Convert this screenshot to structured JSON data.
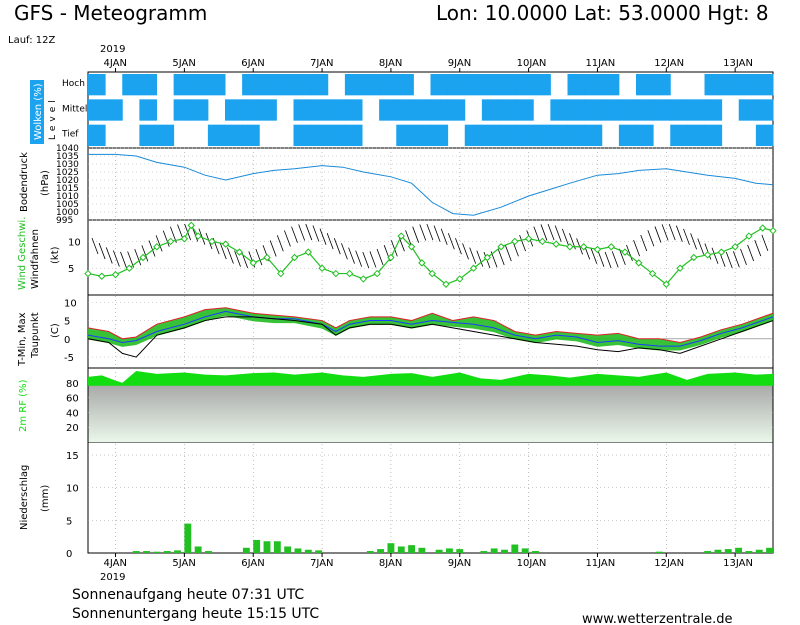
{
  "header": {
    "title": "GFS - Meteogramm",
    "coords": "Lon: 10.0000  Lat: 53.0000  Hgt: 8",
    "run": "Lauf: 12Z",
    "year": "2019"
  },
  "footer": {
    "sunrise": "Sonnenaufgang heute 07:31 UTC",
    "sunset": "Sonnenuntergang heute 15:15 UTC",
    "website": "www.wetterzentrale.de"
  },
  "colors": {
    "cloud": "#1ba3f0",
    "pressure": "#1a8ad8",
    "wind": "#22c022",
    "dew_fill": "#22bb22",
    "tmin": "#1a3cff",
    "tmax": "#e0202a",
    "rh_fill": "#11dd11",
    "precip": "#22c022"
  },
  "chart_data": [
    {
      "type": "heatmap",
      "name": "clouds",
      "ylabel": "Wolken (%)",
      "level_label": "Level",
      "levels": [
        "Hoch",
        "Mittel",
        "Tief"
      ],
      "days": [
        "4JAN",
        "5JAN",
        "6JAN",
        "7JAN",
        "8JAN",
        "9JAN",
        "10JAN",
        "11JAN",
        "12JAN",
        "13JAN"
      ],
      "x_start": 3.6,
      "x_end": 13.55,
      "cells": {
        "Hoch": [
          1,
          0,
          1,
          1,
          0,
          1,
          1,
          1,
          0,
          1,
          1,
          1,
          1,
          1,
          0,
          1,
          1,
          1,
          1,
          0,
          1,
          1,
          1,
          1,
          1,
          1,
          1,
          0,
          1,
          1,
          1,
          0,
          1,
          1,
          0,
          0,
          1,
          1,
          1,
          1
        ],
        "Mittel": [
          1,
          1,
          0,
          1,
          0,
          1,
          1,
          0,
          1,
          1,
          1,
          0,
          1,
          1,
          1,
          1,
          0,
          1,
          1,
          1,
          1,
          1,
          0,
          1,
          1,
          1,
          0,
          1,
          1,
          1,
          1,
          1,
          1,
          1,
          1,
          1,
          1,
          0,
          1,
          1
        ],
        "Tief": [
          1,
          0,
          0,
          1,
          1,
          0,
          0,
          1,
          1,
          1,
          0,
          0,
          1,
          1,
          1,
          1,
          0,
          0,
          1,
          1,
          1,
          0,
          1,
          1,
          1,
          1,
          1,
          1,
          1,
          1,
          0,
          1,
          1,
          0,
          1,
          1,
          1,
          0,
          0,
          1
        ]
      }
    },
    {
      "type": "line",
      "name": "pressure",
      "ylabel": "Bodendruck",
      "unit": "(hPa)",
      "ylim": [
        995,
        1040
      ],
      "yticks": [
        995,
        1000,
        1005,
        1010,
        1015,
        1020,
        1025,
        1030,
        1035,
        1040
      ],
      "x": [
        3.6,
        4.0,
        4.3,
        4.6,
        5.0,
        5.3,
        5.6,
        6.0,
        6.3,
        6.6,
        7.0,
        7.3,
        7.6,
        8.0,
        8.3,
        8.6,
        8.9,
        9.2,
        9.6,
        10.0,
        10.3,
        10.6,
        11.0,
        11.3,
        11.6,
        12.0,
        12.3,
        12.6,
        13.0,
        13.3,
        13.55
      ],
      "values": [
        1036,
        1036,
        1035,
        1031,
        1028,
        1023,
        1020,
        1024,
        1026,
        1027,
        1029,
        1028,
        1025,
        1022,
        1018,
        1006,
        999,
        998,
        1003,
        1010,
        1014,
        1018,
        1023,
        1024,
        1026,
        1027,
        1025,
        1023,
        1021,
        1018,
        1017
      ]
    },
    {
      "type": "line",
      "name": "wind",
      "ylabel": "Wind Geschwi.",
      "ylabel2": "Windfahnen",
      "unit": "(kt)",
      "ylim": [
        0,
        14
      ],
      "yticks": [
        5,
        10
      ],
      "x": [
        3.6,
        3.8,
        4.0,
        4.2,
        4.4,
        4.6,
        4.8,
        5.0,
        5.1,
        5.2,
        5.4,
        5.6,
        5.8,
        6.0,
        6.2,
        6.4,
        6.6,
        6.8,
        7.0,
        7.2,
        7.4,
        7.6,
        7.8,
        8.0,
        8.15,
        8.3,
        8.45,
        8.6,
        8.8,
        9.0,
        9.2,
        9.4,
        9.6,
        9.8,
        10.0,
        10.2,
        10.4,
        10.6,
        10.8,
        11.0,
        11.2,
        11.4,
        11.6,
        11.8,
        12.0,
        12.2,
        12.4,
        12.6,
        12.8,
        13.0,
        13.2,
        13.4,
        13.55
      ],
      "values": [
        4,
        3.5,
        3.8,
        5,
        7,
        9,
        10,
        10.5,
        13,
        11,
        10,
        9.5,
        8,
        6,
        7,
        4,
        7,
        8,
        5,
        4,
        4,
        3,
        4,
        7,
        11,
        9,
        6,
        4,
        2,
        3,
        5,
        7,
        9,
        10,
        10.5,
        10,
        9.5,
        9,
        9,
        8.5,
        9,
        8,
        6,
        4,
        2,
        5,
        7,
        7.5,
        8,
        9,
        11,
        12.5,
        12
      ]
    },
    {
      "type": "line",
      "name": "temperature",
      "ylabel": "T-Min, Max",
      "ylabel2": "Taupunkt",
      "unit": "(C)",
      "ylim": [
        -8,
        12
      ],
      "yticks": [
        -5,
        0,
        5,
        10
      ],
      "x": [
        3.6,
        3.9,
        4.1,
        4.3,
        4.6,
        5.0,
        5.3,
        5.6,
        6.0,
        6.3,
        6.6,
        7.0,
        7.2,
        7.4,
        7.7,
        8.0,
        8.3,
        8.6,
        8.9,
        9.2,
        9.5,
        9.8,
        10.1,
        10.4,
        10.7,
        11.0,
        11.3,
        11.6,
        11.9,
        12.2,
        12.5,
        12.8,
        13.1,
        13.4,
        13.55
      ],
      "series": [
        {
          "name": "T-Max",
          "values": [
            3,
            2,
            0,
            0.5,
            4,
            6,
            8,
            8.5,
            7,
            6.5,
            6,
            5,
            3,
            5,
            6,
            6,
            5,
            7,
            5,
            6,
            5,
            2,
            1,
            2,
            1.5,
            1,
            1.5,
            0,
            0,
            -1,
            0.5,
            2.5,
            4,
            6,
            7
          ]
        },
        {
          "name": "T-Min",
          "values": [
            1,
            0,
            -1,
            -0.5,
            2,
            4,
            6,
            7.5,
            6,
            5.5,
            5.5,
            4,
            2,
            4,
            5,
            5,
            4,
            5,
            4.5,
            4,
            3,
            1,
            0,
            1,
            0.5,
            -1,
            -0.5,
            -1.5,
            -2,
            -2,
            -0.5,
            1.5,
            3,
            5,
            6
          ]
        },
        {
          "name": "Taupunkt",
          "values": [
            0,
            -1,
            -4,
            -5,
            1,
            3,
            5,
            6,
            6,
            5.5,
            5,
            4,
            1,
            3,
            4,
            4,
            3,
            4,
            3,
            2,
            1,
            0,
            -1,
            -1.5,
            -2,
            -3,
            -3.5,
            -2.5,
            -3,
            -4,
            -2,
            0,
            2,
            4,
            5
          ]
        }
      ]
    },
    {
      "type": "area",
      "name": "humidity",
      "ylabel": "2m RF (%)",
      "ylim": [
        0,
        100
      ],
      "yticks": [
        20,
        40,
        60,
        80
      ],
      "x": [
        3.6,
        3.8,
        4.0,
        4.1,
        4.3,
        4.6,
        5.0,
        5.3,
        5.6,
        6.0,
        6.3,
        6.6,
        7.0,
        7.3,
        7.6,
        8.0,
        8.3,
        8.6,
        9.0,
        9.3,
        9.6,
        10.0,
        10.3,
        10.6,
        11.0,
        11.3,
        11.6,
        12.0,
        12.3,
        12.6,
        13.0,
        13.3,
        13.55
      ],
      "values": [
        88,
        90,
        83,
        80,
        96,
        92,
        94,
        91,
        90,
        93,
        94,
        91,
        94,
        90,
        88,
        92,
        93,
        88,
        94,
        86,
        84,
        92,
        90,
        87,
        92,
        90,
        88,
        94,
        84,
        92,
        94,
        91,
        92
      ]
    },
    {
      "type": "bar",
      "name": "precipitation",
      "ylabel": "Niederschlag",
      "unit": "(mm)",
      "ylim": [
        0,
        17
      ],
      "yticks": [
        0,
        5,
        10,
        15
      ],
      "x": [
        4.3,
        4.45,
        4.6,
        4.75,
        4.9,
        5.05,
        5.2,
        5.35,
        5.9,
        6.05,
        6.2,
        6.35,
        6.5,
        6.65,
        6.8,
        6.95,
        7.7,
        7.85,
        8.0,
        8.15,
        8.3,
        8.45,
        8.7,
        8.85,
        9.0,
        9.35,
        9.5,
        9.65,
        9.8,
        9.95,
        10.1,
        11.9,
        12.6,
        12.75,
        12.9,
        13.05,
        13.2,
        13.35,
        13.5
      ],
      "values": [
        0.3,
        0.3,
        0.2,
        0.3,
        0.4,
        4.5,
        1.0,
        0.3,
        0.8,
        2.0,
        1.8,
        1.8,
        1.0,
        0.7,
        0.5,
        0.4,
        0.3,
        0.6,
        1.5,
        1.0,
        1.2,
        0.8,
        0.5,
        0.7,
        0.6,
        0.3,
        0.7,
        0.5,
        1.3,
        0.7,
        0.3,
        0.2,
        0.3,
        0.5,
        0.6,
        0.8,
        0.3,
        0.5,
        0.8
      ]
    }
  ]
}
